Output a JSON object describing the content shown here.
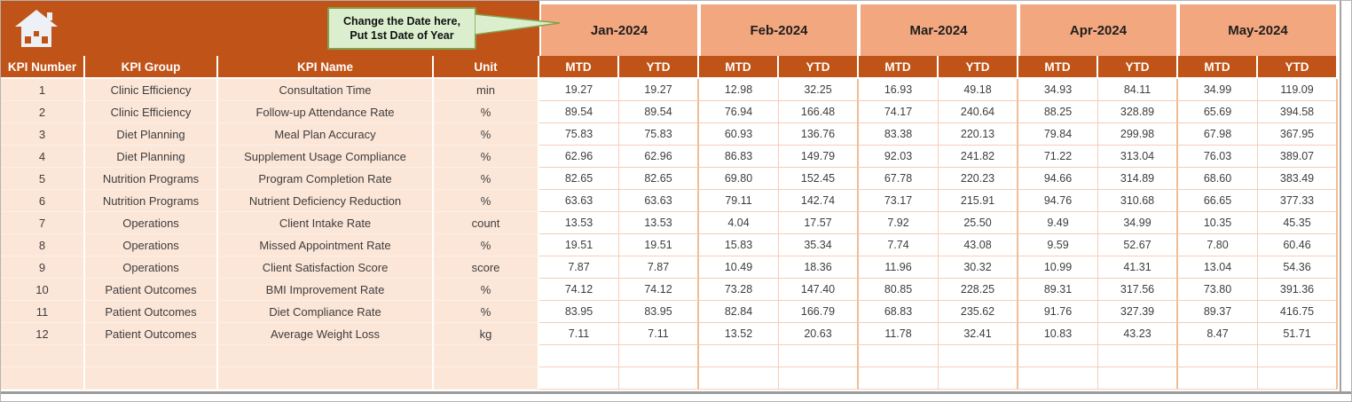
{
  "colors": {
    "band": "#C05317",
    "month_header": "#F2A77E",
    "row_peach": "#FCE6D8",
    "grid_line": "#F5CFB8",
    "callout_fill": "#DBEFCE",
    "callout_border": "#84A14F",
    "header_text": "#FFFFFF",
    "data_text": "#3D3D3D"
  },
  "icons": {
    "home": "home-icon"
  },
  "callout": {
    "line1": "Change the Date here,",
    "line2": "Put 1st Date of Year"
  },
  "months": [
    "Jan-2024",
    "Feb-2024",
    "Mar-2024",
    "Apr-2024",
    "May-2024"
  ],
  "subheaders": [
    "MTD",
    "YTD"
  ],
  "left_headers": [
    "KPI Number",
    "KPI Group",
    "KPI Name",
    "Unit"
  ],
  "rows": [
    {
      "number": "1",
      "group": "Clinic Efficiency",
      "name": "Consultation Time",
      "unit": "min",
      "values": [
        "19.27",
        "19.27",
        "12.98",
        "32.25",
        "16.93",
        "49.18",
        "34.93",
        "84.11",
        "34.99",
        "119.09"
      ]
    },
    {
      "number": "2",
      "group": "Clinic Efficiency",
      "name": "Follow-up Attendance Rate",
      "unit": "%",
      "values": [
        "89.54",
        "89.54",
        "76.94",
        "166.48",
        "74.17",
        "240.64",
        "88.25",
        "328.89",
        "65.69",
        "394.58"
      ]
    },
    {
      "number": "3",
      "group": "Diet Planning",
      "name": "Meal Plan Accuracy",
      "unit": "%",
      "values": [
        "75.83",
        "75.83",
        "60.93",
        "136.76",
        "83.38",
        "220.13",
        "79.84",
        "299.98",
        "67.98",
        "367.95"
      ]
    },
    {
      "number": "4",
      "group": "Diet Planning",
      "name": "Supplement Usage Compliance",
      "unit": "%",
      "values": [
        "62.96",
        "62.96",
        "86.83",
        "149.79",
        "92.03",
        "241.82",
        "71.22",
        "313.04",
        "76.03",
        "389.07"
      ]
    },
    {
      "number": "5",
      "group": "Nutrition Programs",
      "name": "Program Completion Rate",
      "unit": "%",
      "values": [
        "82.65",
        "82.65",
        "69.80",
        "152.45",
        "67.78",
        "220.23",
        "94.66",
        "314.89",
        "68.60",
        "383.49"
      ]
    },
    {
      "number": "6",
      "group": "Nutrition Programs",
      "name": "Nutrient Deficiency Reduction",
      "unit": "%",
      "values": [
        "63.63",
        "63.63",
        "79.11",
        "142.74",
        "73.17",
        "215.91",
        "94.76",
        "310.68",
        "66.65",
        "377.33"
      ]
    },
    {
      "number": "7",
      "group": "Operations",
      "name": "Client Intake Rate",
      "unit": "count",
      "values": [
        "13.53",
        "13.53",
        "4.04",
        "17.57",
        "7.92",
        "25.50",
        "9.49",
        "34.99",
        "10.35",
        "45.35"
      ]
    },
    {
      "number": "8",
      "group": "Operations",
      "name": "Missed Appointment Rate",
      "unit": "%",
      "values": [
        "19.51",
        "19.51",
        "15.83",
        "35.34",
        "7.74",
        "43.08",
        "9.59",
        "52.67",
        "7.80",
        "60.46"
      ]
    },
    {
      "number": "9",
      "group": "Operations",
      "name": "Client Satisfaction Score",
      "unit": "score",
      "values": [
        "7.87",
        "7.87",
        "10.49",
        "18.36",
        "11.96",
        "30.32",
        "10.99",
        "41.31",
        "13.04",
        "54.36"
      ]
    },
    {
      "number": "10",
      "group": "Patient Outcomes",
      "name": "BMI Improvement Rate",
      "unit": "%",
      "values": [
        "74.12",
        "74.12",
        "73.28",
        "147.40",
        "80.85",
        "228.25",
        "89.31",
        "317.56",
        "73.80",
        "391.36"
      ]
    },
    {
      "number": "11",
      "group": "Patient Outcomes",
      "name": "Diet Compliance Rate",
      "unit": "%",
      "values": [
        "83.95",
        "83.95",
        "82.84",
        "166.79",
        "68.83",
        "235.62",
        "91.76",
        "327.39",
        "89.37",
        "416.75"
      ]
    },
    {
      "number": "12",
      "group": "Patient Outcomes",
      "name": "Average Weight Loss",
      "unit": "kg",
      "values": [
        "7.11",
        "7.11",
        "13.52",
        "20.63",
        "11.78",
        "32.41",
        "10.83",
        "43.23",
        "8.47",
        "51.71"
      ]
    }
  ],
  "empty_rows": 2
}
